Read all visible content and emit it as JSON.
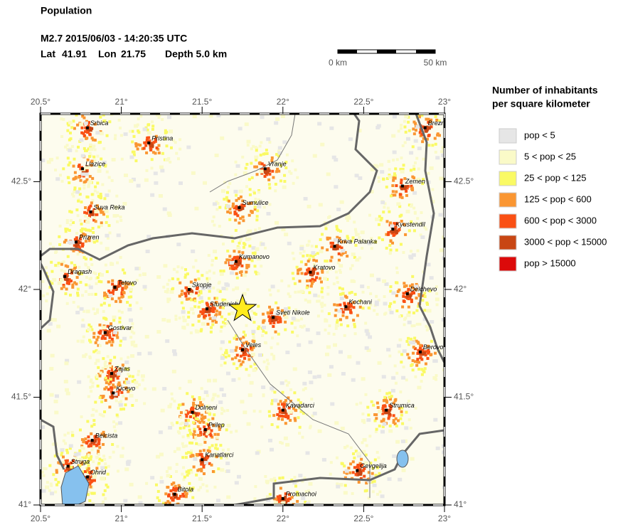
{
  "header": {
    "title": "Population",
    "event": "M2.7  2015/06/03 - 14:20:35 UTC",
    "lat_label": "Lat",
    "lat": 41.91,
    "lon_label": "Lon",
    "lon": 21.75,
    "depth": "Depth  5.0 km"
  },
  "scale_bar": {
    "start_label": "0 km",
    "end_label": "50 km"
  },
  "map": {
    "xlim": [
      20.5,
      23
    ],
    "ylim": [
      41,
      42.815
    ],
    "xticks": [
      {
        "value": 20.5,
        "label": "20.5°"
      },
      {
        "value": 21,
        "label": "21°"
      },
      {
        "value": 21.5,
        "label": "21.5°"
      },
      {
        "value": 22,
        "label": "22°"
      },
      {
        "value": 22.5,
        "label": "22.5°"
      },
      {
        "value": 23,
        "label": "23°"
      }
    ],
    "yticks": [
      {
        "value": 41,
        "label": "41°"
      },
      {
        "value": 41.5,
        "label": "41.5°"
      },
      {
        "value": 42,
        "label": "42°"
      },
      {
        "value": 42.5,
        "label": "42.5°"
      }
    ],
    "cities": [
      {
        "name": "Srbica",
        "lon": 20.79,
        "lat": 42.75
      },
      {
        "name": "Pristina",
        "lon": 21.17,
        "lat": 42.68
      },
      {
        "name": "Llazice",
        "lon": 20.76,
        "lat": 42.56
      },
      {
        "name": "Vranje",
        "lon": 21.89,
        "lat": 42.56
      },
      {
        "name": "Zemen",
        "lon": 22.74,
        "lat": 42.48
      },
      {
        "name": "Suva Reka",
        "lon": 20.81,
        "lat": 42.36
      },
      {
        "name": "Sumulice",
        "lon": 21.73,
        "lat": 42.38
      },
      {
        "name": "Kyustendil",
        "lon": 22.68,
        "lat": 42.28
      },
      {
        "name": "Prizren",
        "lon": 20.72,
        "lat": 42.22
      },
      {
        "name": "Kriva Palanka",
        "lon": 22.32,
        "lat": 42.2
      },
      {
        "name": "Kumanovo",
        "lon": 21.71,
        "lat": 42.13
      },
      {
        "name": "Dragash",
        "lon": 20.65,
        "lat": 42.06
      },
      {
        "name": "Kratovo",
        "lon": 22.17,
        "lat": 42.08
      },
      {
        "name": "Tetovo",
        "lon": 20.96,
        "lat": 42.01
      },
      {
        "name": "Skopje",
        "lon": 21.42,
        "lat": 42.0
      },
      {
        "name": "Delchevo",
        "lon": 22.77,
        "lat": 41.98
      },
      {
        "name": "Studenichani",
        "lon": 21.53,
        "lat": 41.91
      },
      {
        "name": "Sveti Nikole",
        "lon": 21.94,
        "lat": 41.87
      },
      {
        "name": "Kochani",
        "lon": 22.39,
        "lat": 41.92
      },
      {
        "name": "Gostivar",
        "lon": 20.9,
        "lat": 41.8
      },
      {
        "name": "Veles",
        "lon": 21.75,
        "lat": 41.72
      },
      {
        "name": "Berovo",
        "lon": 22.85,
        "lat": 41.71
      },
      {
        "name": "Zajas",
        "lon": 20.94,
        "lat": 41.61
      },
      {
        "name": "Kicevo",
        "lon": 20.95,
        "lat": 41.52
      },
      {
        "name": "Dolneni",
        "lon": 21.44,
        "lat": 41.43
      },
      {
        "name": "Kavadarci",
        "lon": 22.0,
        "lat": 41.44
      },
      {
        "name": "Strumica",
        "lon": 22.64,
        "lat": 41.44
      },
      {
        "name": "Prilep",
        "lon": 21.52,
        "lat": 41.35
      },
      {
        "name": "Belcista",
        "lon": 20.82,
        "lat": 41.3
      },
      {
        "name": "Kanatlarci",
        "lon": 21.5,
        "lat": 41.21
      },
      {
        "name": "Struga",
        "lon": 20.67,
        "lat": 41.18
      },
      {
        "name": "Gevgelija",
        "lon": 22.46,
        "lat": 41.16
      },
      {
        "name": "Ohrid",
        "lon": 20.79,
        "lat": 41.13
      },
      {
        "name": "Bitola",
        "lon": 21.33,
        "lat": 41.05
      },
      {
        "name": "Promachoi",
        "lon": 22.0,
        "lat": 41.03
      },
      {
        "name": "Brezn",
        "lon": 22.88,
        "lat": 42.75
      }
    ]
  },
  "legend": {
    "title": [
      "Number of inhabitants",
      "per square kilometer"
    ],
    "entries": [
      {
        "label": "pop < 5",
        "color": "#e6e6e6"
      },
      {
        "label": "5 < pop < 25",
        "color": "#fafac8"
      },
      {
        "label": "25 < pop < 125",
        "color": "#fafa64"
      },
      {
        "label": "125 < pop < 600",
        "color": "#fa9632"
      },
      {
        "label": "600 < pop < 3000",
        "color": "#fa5014"
      },
      {
        "label": "3000 < pop < 15000",
        "color": "#c84614"
      },
      {
        "label": "pop > 15000",
        "color": "#dc0a0a"
      }
    ]
  }
}
